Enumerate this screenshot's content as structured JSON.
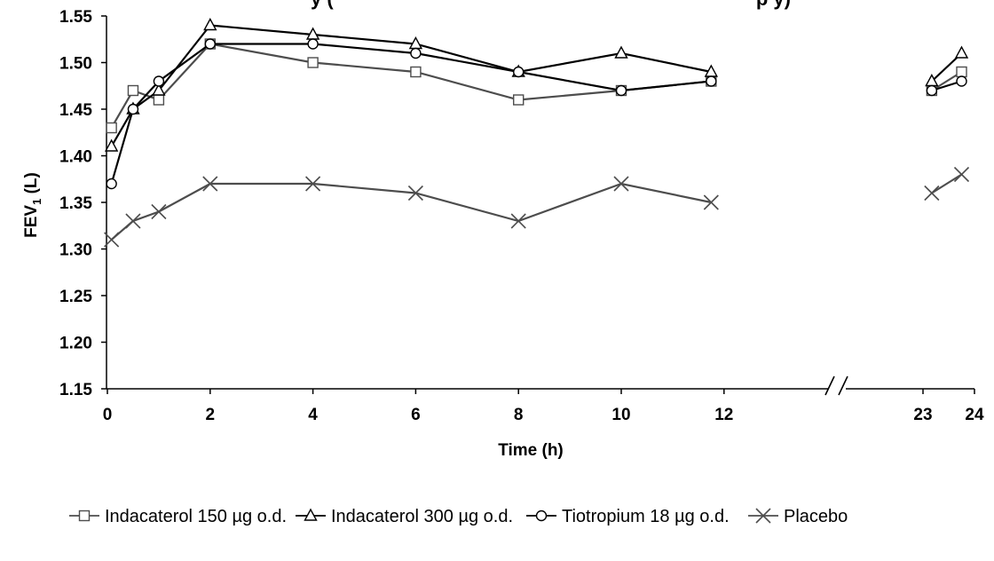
{
  "chart_data": {
    "type": "line",
    "title_fragment": "y (",
    "title_fragment_right": "p      y)",
    "xlabel": "Time (h)",
    "ylabel_main": "FEV",
    "ylabel_sub": "1",
    "ylabel_unit": " (L)",
    "ylim": [
      1.15,
      1.55
    ],
    "yticks": [
      "1.15",
      "1.20",
      "1.25",
      "1.30",
      "1.35",
      "1.40",
      "1.45",
      "1.50",
      "1.55"
    ],
    "xticks": [
      "0",
      "2",
      "4",
      "6",
      "8",
      "10",
      "12",
      "23",
      "24"
    ],
    "axis_break": "//",
    "grid": false,
    "legend_position": "bottom",
    "series": [
      {
        "name": "Indacaterol 150 µg o.d.",
        "marker": "square",
        "color": "#4d4d4d",
        "segments": [
          {
            "x": [
              0.08,
              0.5,
              1,
              2,
              4,
              6,
              8,
              10,
              11.75
            ],
            "y": [
              1.43,
              1.47,
              1.46,
              1.52,
              1.5,
              1.49,
              1.46,
              1.47,
              1.48
            ]
          },
          {
            "x": [
              23.17,
              23.75
            ],
            "y": [
              1.47,
              1.49
            ]
          }
        ]
      },
      {
        "name": "Indacaterol 300 µg o.d.",
        "marker": "triangle",
        "color": "#000000",
        "segments": [
          {
            "x": [
              0.08,
              0.5,
              1,
              2,
              4,
              6,
              8,
              10,
              11.75
            ],
            "y": [
              1.41,
              1.45,
              1.47,
              1.54,
              1.53,
              1.52,
              1.49,
              1.51,
              1.49
            ]
          },
          {
            "x": [
              23.17,
              23.75
            ],
            "y": [
              1.48,
              1.51
            ]
          }
        ]
      },
      {
        "name": "Tiotropium 18 µg o.d.",
        "marker": "circle",
        "color": "#000000",
        "segments": [
          {
            "x": [
              0.08,
              0.5,
              1,
              2,
              4,
              6,
              8,
              10,
              11.75
            ],
            "y": [
              1.37,
              1.45,
              1.48,
              1.52,
              1.52,
              1.51,
              1.49,
              1.47,
              1.48
            ]
          },
          {
            "x": [
              23.17,
              23.75
            ],
            "y": [
              1.47,
              1.48
            ]
          }
        ]
      },
      {
        "name": "Placebo",
        "marker": "x",
        "color": "#4d4d4d",
        "segments": [
          {
            "x": [
              0.08,
              0.5,
              1,
              2,
              4,
              6,
              8,
              10,
              11.75
            ],
            "y": [
              1.31,
              1.33,
              1.34,
              1.37,
              1.37,
              1.36,
              1.33,
              1.37,
              1.35
            ]
          },
          {
            "x": [
              23.17,
              23.75
            ],
            "y": [
              1.36,
              1.38
            ]
          }
        ]
      }
    ]
  }
}
